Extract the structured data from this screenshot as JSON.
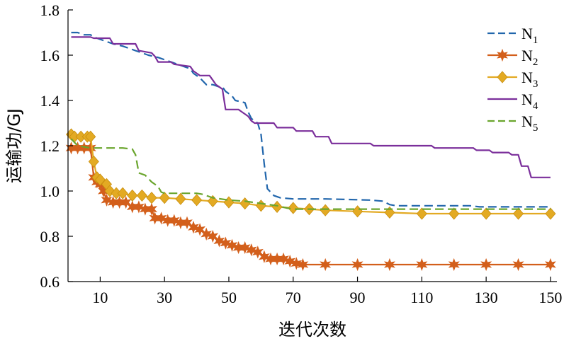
{
  "chart_data": {
    "type": "line",
    "title": "",
    "xlabel": "迭代次数",
    "ylabel": "运输功/GJ",
    "xlim": [
      0,
      152
    ],
    "ylim": [
      0.6,
      1.8
    ],
    "x_ticks": [
      10,
      30,
      50,
      70,
      90,
      110,
      130,
      150
    ],
    "x_tick_labels": [
      "10",
      "30",
      "50",
      "70",
      "90",
      "110",
      "130",
      "150"
    ],
    "y_ticks": [
      0.6,
      0.8,
      1.0,
      1.2,
      1.4,
      1.6,
      1.8
    ],
    "y_tick_labels": [
      "0.6",
      "0.8",
      "1.0",
      "1.2",
      "1.4",
      "1.6",
      "1.8"
    ],
    "grid": false,
    "legend_position": "top-right",
    "series": [
      {
        "name": "N1",
        "name_main": "N",
        "name_sub": "1",
        "color": "#2166ac",
        "dash": "dash",
        "marker": "none",
        "points": [
          [
            1,
            1.7
          ],
          [
            3,
            1.7
          ],
          [
            5,
            1.69
          ],
          [
            7,
            1.69
          ],
          [
            8,
            1.68
          ],
          [
            10,
            1.67
          ],
          [
            12,
            1.66
          ],
          [
            14,
            1.65
          ],
          [
            17,
            1.64
          ],
          [
            19,
            1.63
          ],
          [
            21,
            1.62
          ],
          [
            23,
            1.61
          ],
          [
            25,
            1.6
          ],
          [
            28,
            1.59
          ],
          [
            30,
            1.58
          ],
          [
            32,
            1.57
          ],
          [
            34,
            1.56
          ],
          [
            36,
            1.55
          ],
          [
            38,
            1.54
          ],
          [
            39,
            1.52
          ],
          [
            41,
            1.5
          ],
          [
            43,
            1.47
          ],
          [
            45,
            1.47
          ],
          [
            47,
            1.46
          ],
          [
            48,
            1.46
          ],
          [
            49,
            1.44
          ],
          [
            51,
            1.42
          ],
          [
            52,
            1.4
          ],
          [
            55,
            1.39
          ],
          [
            56,
            1.35
          ],
          [
            57,
            1.32
          ],
          [
            58,
            1.31
          ],
          [
            59,
            1.3
          ],
          [
            60,
            1.25
          ],
          [
            61,
            1.12
          ],
          [
            62,
            1.01
          ],
          [
            64,
            0.98
          ],
          [
            66,
            0.97
          ],
          [
            70,
            0.965
          ],
          [
            80,
            0.965
          ],
          [
            94,
            0.96
          ],
          [
            98,
            0.955
          ],
          [
            100,
            0.94
          ],
          [
            102,
            0.935
          ],
          [
            125,
            0.935
          ],
          [
            128,
            0.93
          ],
          [
            150,
            0.93
          ]
        ]
      },
      {
        "name": "N2",
        "name_main": "N",
        "name_sub": "2",
        "color": "#d35f1b",
        "dash": "solid",
        "marker": "star",
        "points": [
          [
            1,
            1.19
          ],
          [
            3,
            1.19
          ],
          [
            5,
            1.19
          ],
          [
            7,
            1.19
          ],
          [
            8,
            1.06
          ],
          [
            9,
            1.04
          ],
          [
            10,
            1.03
          ],
          [
            11,
            1.0
          ],
          [
            12,
            0.96
          ],
          [
            14,
            0.95
          ],
          [
            16,
            0.95
          ],
          [
            18,
            0.95
          ],
          [
            20,
            0.93
          ],
          [
            22,
            0.93
          ],
          [
            24,
            0.92
          ],
          [
            26,
            0.92
          ],
          [
            27,
            0.88
          ],
          [
            29,
            0.88
          ],
          [
            31,
            0.87
          ],
          [
            33,
            0.87
          ],
          [
            35,
            0.86
          ],
          [
            37,
            0.86
          ],
          [
            39,
            0.84
          ],
          [
            41,
            0.83
          ],
          [
            43,
            0.81
          ],
          [
            45,
            0.8
          ],
          [
            47,
            0.78
          ],
          [
            49,
            0.77
          ],
          [
            51,
            0.76
          ],
          [
            53,
            0.75
          ],
          [
            55,
            0.75
          ],
          [
            57,
            0.74
          ],
          [
            59,
            0.73
          ],
          [
            61,
            0.71
          ],
          [
            63,
            0.7
          ],
          [
            65,
            0.7
          ],
          [
            67,
            0.7
          ],
          [
            69,
            0.69
          ],
          [
            71,
            0.68
          ],
          [
            73,
            0.675
          ],
          [
            80,
            0.675
          ],
          [
            90,
            0.675
          ],
          [
            100,
            0.675
          ],
          [
            110,
            0.675
          ],
          [
            120,
            0.675
          ],
          [
            130,
            0.675
          ],
          [
            140,
            0.675
          ],
          [
            150,
            0.675
          ]
        ]
      },
      {
        "name": "N3",
        "name_main": "N",
        "name_sub": "3",
        "color": "#e3aa23",
        "dash": "solid",
        "marker": "diamond",
        "points": [
          [
            1,
            1.25
          ],
          [
            2,
            1.24
          ],
          [
            4,
            1.24
          ],
          [
            6,
            1.24
          ],
          [
            7,
            1.24
          ],
          [
            8,
            1.13
          ],
          [
            9,
            1.06
          ],
          [
            10,
            1.05
          ],
          [
            12,
            1.03
          ],
          [
            13,
            1.0
          ],
          [
            15,
            0.99
          ],
          [
            17,
            0.99
          ],
          [
            20,
            0.98
          ],
          [
            23,
            0.98
          ],
          [
            26,
            0.97
          ],
          [
            30,
            0.97
          ],
          [
            35,
            0.965
          ],
          [
            40,
            0.96
          ],
          [
            45,
            0.955
          ],
          [
            50,
            0.95
          ],
          [
            55,
            0.945
          ],
          [
            60,
            0.935
          ],
          [
            65,
            0.93
          ],
          [
            70,
            0.925
          ],
          [
            75,
            0.92
          ],
          [
            80,
            0.915
          ],
          [
            90,
            0.91
          ],
          [
            100,
            0.905
          ],
          [
            110,
            0.9
          ],
          [
            120,
            0.9
          ],
          [
            130,
            0.9
          ],
          [
            140,
            0.9
          ],
          [
            150,
            0.9
          ]
        ]
      },
      {
        "name": "N4",
        "name_main": "N",
        "name_sub": "4",
        "color": "#7b2f9b",
        "dash": "solid",
        "marker": "none",
        "points": [
          [
            1,
            1.68
          ],
          [
            7,
            1.68
          ],
          [
            8,
            1.675
          ],
          [
            13,
            1.675
          ],
          [
            14,
            1.65
          ],
          [
            21,
            1.65
          ],
          [
            22,
            1.62
          ],
          [
            26,
            1.61
          ],
          [
            27,
            1.595
          ],
          [
            28,
            1.57
          ],
          [
            32,
            1.57
          ],
          [
            33,
            1.56
          ],
          [
            38,
            1.55
          ],
          [
            39,
            1.53
          ],
          [
            40,
            1.52
          ],
          [
            41,
            1.51
          ],
          [
            44,
            1.51
          ],
          [
            45,
            1.49
          ],
          [
            46,
            1.47
          ],
          [
            47,
            1.46
          ],
          [
            48,
            1.45
          ],
          [
            49,
            1.36
          ],
          [
            53,
            1.36
          ],
          [
            54,
            1.35
          ],
          [
            56,
            1.33
          ],
          [
            57,
            1.31
          ],
          [
            58,
            1.3
          ],
          [
            64,
            1.3
          ],
          [
            65,
            1.28
          ],
          [
            70,
            1.28
          ],
          [
            71,
            1.265
          ],
          [
            76,
            1.265
          ],
          [
            77,
            1.24
          ],
          [
            81,
            1.24
          ],
          [
            82,
            1.21
          ],
          [
            94,
            1.21
          ],
          [
            95,
            1.2
          ],
          [
            113,
            1.2
          ],
          [
            114,
            1.19
          ],
          [
            126,
            1.19
          ],
          [
            127,
            1.18
          ],
          [
            131,
            1.18
          ],
          [
            132,
            1.17
          ],
          [
            137,
            1.17
          ],
          [
            138,
            1.16
          ],
          [
            140,
            1.16
          ],
          [
            141,
            1.11
          ],
          [
            143,
            1.11
          ],
          [
            144,
            1.06
          ],
          [
            150,
            1.06
          ]
        ]
      },
      {
        "name": "N5",
        "name_main": "N",
        "name_sub": "5",
        "color": "#6aa52d",
        "dash": "dash",
        "marker": "none",
        "points": [
          [
            1,
            1.23
          ],
          [
            3,
            1.2
          ],
          [
            7,
            1.19
          ],
          [
            11,
            1.19
          ],
          [
            14,
            1.19
          ],
          [
            17,
            1.19
          ],
          [
            20,
            1.185
          ],
          [
            21,
            1.16
          ],
          [
            22,
            1.08
          ],
          [
            24,
            1.07
          ],
          [
            26,
            1.04
          ],
          [
            28,
            1.02
          ],
          [
            29,
            0.995
          ],
          [
            30,
            0.99
          ],
          [
            34,
            0.99
          ],
          [
            40,
            0.99
          ],
          [
            42,
            0.985
          ],
          [
            45,
            0.97
          ],
          [
            50,
            0.96
          ],
          [
            55,
            0.955
          ],
          [
            60,
            0.945
          ],
          [
            65,
            0.935
          ],
          [
            68,
            0.925
          ],
          [
            70,
            0.92
          ],
          [
            80,
            0.92
          ],
          [
            90,
            0.92
          ],
          [
            100,
            0.92
          ],
          [
            110,
            0.92
          ],
          [
            120,
            0.92
          ],
          [
            130,
            0.92
          ],
          [
            140,
            0.92
          ],
          [
            150,
            0.92
          ]
        ]
      }
    ]
  }
}
